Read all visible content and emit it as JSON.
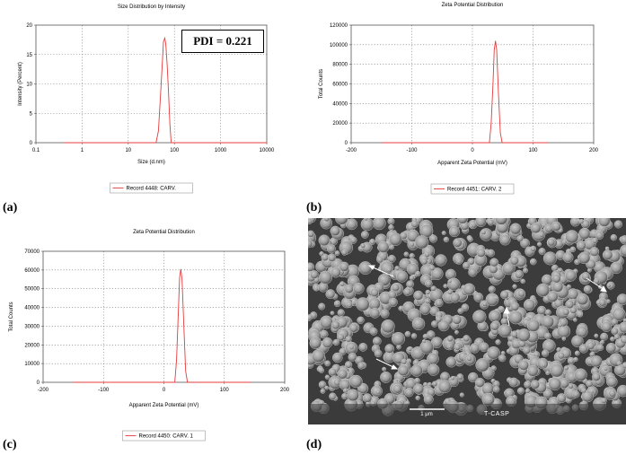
{
  "panels": [
    {
      "label": "(a)"
    },
    {
      "label": "(b)"
    },
    {
      "label": "(c)"
    },
    {
      "label": "(d)"
    }
  ],
  "annotation_pdi": "PDI = 0.221",
  "sem_scale_label": "1 μm",
  "sem_watermark": "T-CASP",
  "colors": {
    "curve": "#e43c3c"
  },
  "chart_data": [
    {
      "id": "a",
      "type": "line",
      "title": "Size Distribution by Intensity",
      "xlabel": "Size (d.nm)",
      "ylabel": "Intensity (Percent)",
      "xscale": "log",
      "xlim": [
        0.1,
        10000
      ],
      "ylim": [
        0,
        20
      ],
      "xticks": [
        0.1,
        1,
        10,
        100,
        1000,
        10000
      ],
      "xticklabels": [
        "0.1",
        "1",
        "10",
        "100",
        "1000",
        "10000"
      ],
      "yticks": [
        0,
        5,
        10,
        15,
        20
      ],
      "yticklabels": [
        "0",
        "5",
        "10",
        "15",
        "20"
      ],
      "grid": true,
      "legend": "bottom-center",
      "series": [
        {
          "name": "Record 4448: CARV.",
          "x": [
            0.4,
            40,
            45,
            50,
            55,
            58,
            62,
            65,
            70,
            75,
            80,
            85,
            10000
          ],
          "y": [
            0,
            0,
            2,
            8,
            14,
            17.2,
            17.8,
            16.8,
            13,
            8,
            3,
            0,
            0
          ]
        }
      ]
    },
    {
      "id": "b",
      "type": "line",
      "title": "Zeta Potential Distribution",
      "xlabel": "Apparent Zeta Potential (mV)",
      "ylabel": "Total Counts",
      "xlim": [
        -200,
        200
      ],
      "ylim": [
        0,
        120000
      ],
      "xticks": [
        -200,
        -100,
        0,
        100,
        200
      ],
      "xticklabels": [
        "-200",
        "-100",
        "0",
        "100",
        "200"
      ],
      "yticks": [
        0,
        20000,
        40000,
        60000,
        80000,
        100000,
        120000
      ],
      "yticklabels": [
        "0",
        "20000",
        "40000",
        "60000",
        "80000",
        "100000",
        "120000"
      ],
      "grid": true,
      "legend": "bottom-center",
      "series": [
        {
          "name": "Record 4451: CARV. 2",
          "x": [
            -150,
            28,
            31,
            34,
            36,
            38,
            40,
            43,
            46,
            49,
            125
          ],
          "y": [
            0,
            0,
            20000,
            60000,
            95000,
            104000,
            95000,
            50000,
            10000,
            0,
            0
          ]
        }
      ]
    },
    {
      "id": "c",
      "type": "line",
      "title": "Zeta Potential Distribution",
      "xlabel": "Apparent Zeta Potential (mV)",
      "ylabel": "Total Counts",
      "xlim": [
        -200,
        200
      ],
      "ylim": [
        0,
        70000
      ],
      "xticks": [
        -200,
        -100,
        0,
        100,
        200
      ],
      "xticklabels": [
        "-200",
        "-100",
        "0",
        "100",
        "200"
      ],
      "yticks": [
        0,
        10000,
        20000,
        30000,
        40000,
        50000,
        60000,
        70000
      ],
      "yticklabels": [
        "0",
        "10000",
        "20000",
        "30000",
        "40000",
        "50000",
        "60000",
        "70000"
      ],
      "grid": true,
      "legend": "bottom-center",
      "series": [
        {
          "name": "Record 4450: CARV. 1",
          "x": [
            -150,
            18,
            21,
            24,
            26,
            28,
            30,
            33,
            36,
            39,
            145
          ],
          "y": [
            0,
            0,
            12000,
            38000,
            56000,
            60500,
            55000,
            30000,
            6000,
            0,
            0
          ]
        }
      ]
    }
  ]
}
